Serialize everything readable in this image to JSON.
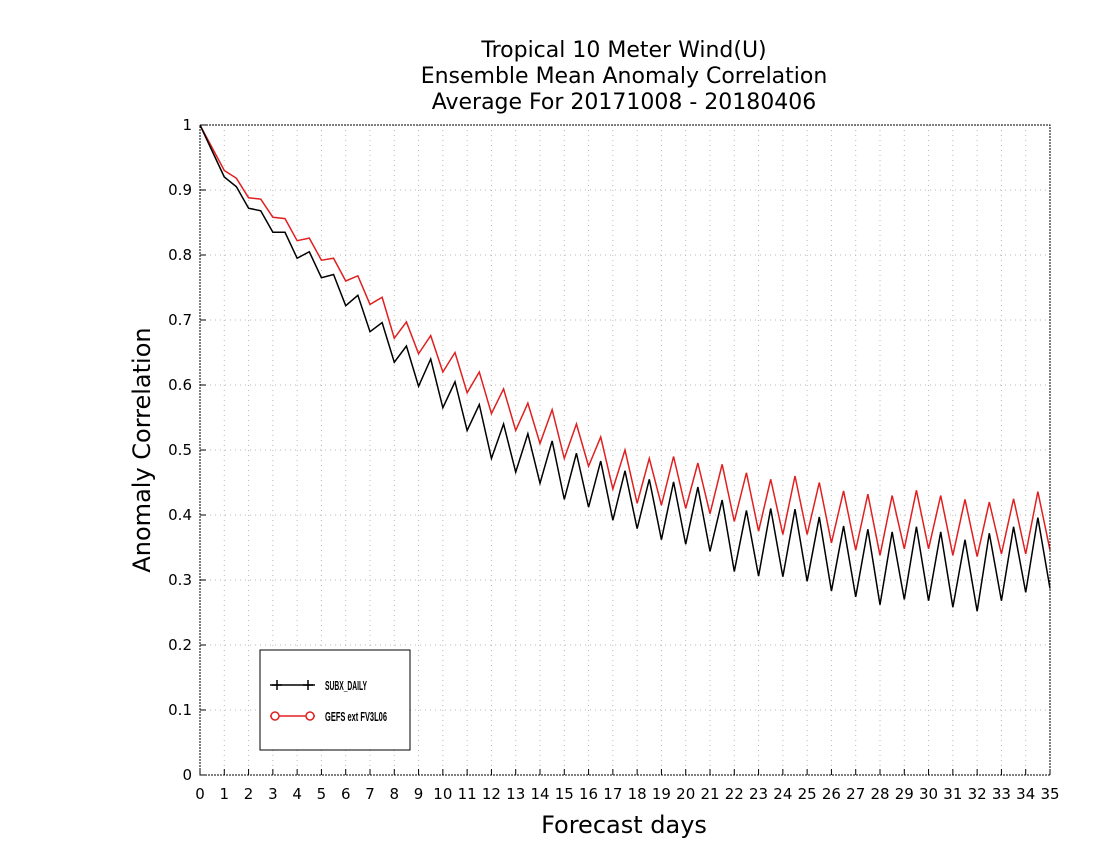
{
  "chart_data": {
    "type": "line",
    "title_lines": [
      "Tropical 10 Meter Wind(U)",
      "Ensemble Mean Anomaly Correlation",
      "Average For 20171008 - 20180406"
    ],
    "xlabel": "Forecast days",
    "ylabel": "Anomaly Correlation",
    "xlim": [
      0,
      35
    ],
    "ylim": [
      0,
      1
    ],
    "x_ticks": [
      0,
      1,
      2,
      3,
      4,
      5,
      6,
      7,
      8,
      9,
      10,
      11,
      12,
      13,
      14,
      15,
      16,
      17,
      18,
      19,
      20,
      21,
      22,
      23,
      24,
      25,
      26,
      27,
      28,
      29,
      30,
      31,
      32,
      33,
      34,
      35
    ],
    "y_ticks": [
      0,
      0.1,
      0.2,
      0.3,
      0.4,
      0.5,
      0.6,
      0.7,
      0.8,
      0.9,
      1
    ],
    "y_tick_labels": [
      "0",
      "0.1",
      "0.2",
      "0.3",
      "0.4",
      "0.5",
      "0.6",
      "0.7",
      "0.8",
      "0.9",
      "1"
    ],
    "grid": true,
    "legend_position": "bottom-left",
    "x_step": 0.5,
    "series": [
      {
        "name": "SUBX_DAILY",
        "color": "#000000",
        "marker": "plus",
        "values": [
          1.0,
          0.96,
          0.92,
          0.905,
          0.872,
          0.868,
          0.835,
          0.835,
          0.795,
          0.805,
          0.765,
          0.77,
          0.722,
          0.738,
          0.682,
          0.696,
          0.635,
          0.66,
          0.598,
          0.64,
          0.565,
          0.605,
          0.53,
          0.57,
          0.487,
          0.54,
          0.466,
          0.525,
          0.449,
          0.514,
          0.424,
          0.495,
          0.412,
          0.483,
          0.392,
          0.468,
          0.379,
          0.455,
          0.362,
          0.451,
          0.355,
          0.443,
          0.344,
          0.423,
          0.313,
          0.407,
          0.306,
          0.41,
          0.305,
          0.409,
          0.298,
          0.397,
          0.283,
          0.383,
          0.274,
          0.378,
          0.262,
          0.374,
          0.27,
          0.382,
          0.268,
          0.374,
          0.258,
          0.362,
          0.252,
          0.372,
          0.268,
          0.382,
          0.281,
          0.396,
          0.287
        ]
      },
      {
        "name": "GEFS ext FV3L06",
        "color": "#e02020",
        "marker": "circle",
        "values": [
          1.0,
          0.965,
          0.93,
          0.918,
          0.888,
          0.886,
          0.858,
          0.856,
          0.822,
          0.826,
          0.792,
          0.795,
          0.76,
          0.768,
          0.724,
          0.735,
          0.672,
          0.697,
          0.648,
          0.676,
          0.62,
          0.65,
          0.588,
          0.62,
          0.556,
          0.594,
          0.53,
          0.572,
          0.51,
          0.562,
          0.487,
          0.54,
          0.475,
          0.52,
          0.44,
          0.5,
          0.418,
          0.487,
          0.415,
          0.49,
          0.41,
          0.48,
          0.402,
          0.478,
          0.39,
          0.465,
          0.375,
          0.455,
          0.37,
          0.46,
          0.37,
          0.45,
          0.357,
          0.437,
          0.346,
          0.432,
          0.338,
          0.43,
          0.348,
          0.438,
          0.348,
          0.43,
          0.338,
          0.424,
          0.336,
          0.42,
          0.34,
          0.425,
          0.34,
          0.436,
          0.346
        ]
      }
    ]
  }
}
